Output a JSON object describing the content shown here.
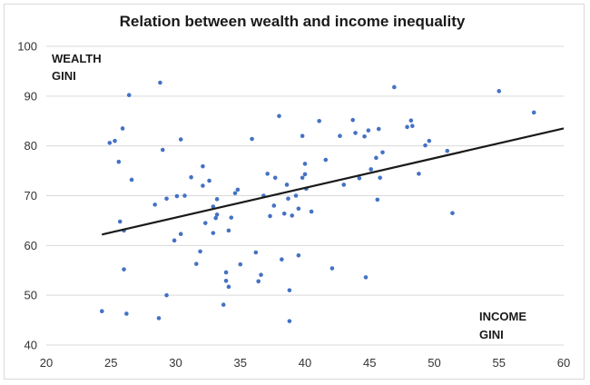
{
  "chart_data": {
    "type": "scatter",
    "title": "Relation between wealth and income inequality",
    "xlabel": [
      "INCOME",
      "GINI"
    ],
    "ylabel": [
      "WEALTH",
      "GINI"
    ],
    "xlim": [
      20,
      60
    ],
    "ylim": [
      40,
      100
    ],
    "xticks": [
      20,
      25,
      30,
      35,
      40,
      45,
      50,
      55,
      60
    ],
    "yticks": [
      40,
      50,
      60,
      70,
      80,
      90,
      100
    ],
    "grid": "horizontal",
    "colors": {
      "points": "#4472c4",
      "trendline": "#1a1a1a",
      "grid": "#d9d9d9"
    },
    "trendline": {
      "x": [
        24.3,
        60
      ],
      "y": [
        62.2,
        83.5
      ]
    },
    "points": [
      [
        24.3,
        46.8
      ],
      [
        24.9,
        80.6
      ],
      [
        25.3,
        81.0
      ],
      [
        25.6,
        76.8
      ],
      [
        25.7,
        64.8
      ],
      [
        25.9,
        83.5
      ],
      [
        26.0,
        63.0
      ],
      [
        26.0,
        55.2
      ],
      [
        26.2,
        46.3
      ],
      [
        26.4,
        90.2
      ],
      [
        26.6,
        73.2
      ],
      [
        28.4,
        68.2
      ],
      [
        28.7,
        45.4
      ],
      [
        28.8,
        92.7
      ],
      [
        29.0,
        79.2
      ],
      [
        29.3,
        69.4
      ],
      [
        29.3,
        50.0
      ],
      [
        29.9,
        61.0
      ],
      [
        30.1,
        69.9
      ],
      [
        30.4,
        81.3
      ],
      [
        30.4,
        62.3
      ],
      [
        30.7,
        70.0
      ],
      [
        31.2,
        73.7
      ],
      [
        31.6,
        56.3
      ],
      [
        31.9,
        58.8
      ],
      [
        32.1,
        75.9
      ],
      [
        32.1,
        72.0
      ],
      [
        32.3,
        64.5
      ],
      [
        32.6,
        73.0
      ],
      [
        32.9,
        62.5
      ],
      [
        32.9,
        67.8
      ],
      [
        33.1,
        65.5
      ],
      [
        33.2,
        66.2
      ],
      [
        33.2,
        69.3
      ],
      [
        33.7,
        48.1
      ],
      [
        33.9,
        54.6
      ],
      [
        33.9,
        52.9
      ],
      [
        34.1,
        51.7
      ],
      [
        34.1,
        63.0
      ],
      [
        34.3,
        65.6
      ],
      [
        34.6,
        70.5
      ],
      [
        34.8,
        71.2
      ],
      [
        35.0,
        56.2
      ],
      [
        35.9,
        81.4
      ],
      [
        36.2,
        58.6
      ],
      [
        36.4,
        52.8
      ],
      [
        36.6,
        54.1
      ],
      [
        36.8,
        70.0
      ],
      [
        37.1,
        74.4
      ],
      [
        37.3,
        65.9
      ],
      [
        37.6,
        68.0
      ],
      [
        37.7,
        73.6
      ],
      [
        38.0,
        86.0
      ],
      [
        38.2,
        57.2
      ],
      [
        38.4,
        66.4
      ],
      [
        38.6,
        72.2
      ],
      [
        38.7,
        69.4
      ],
      [
        38.8,
        44.8
      ],
      [
        38.8,
        51.0
      ],
      [
        39.0,
        66.0
      ],
      [
        39.3,
        70.0
      ],
      [
        39.5,
        58.0
      ],
      [
        39.5,
        67.4
      ],
      [
        39.8,
        82.0
      ],
      [
        39.8,
        73.6
      ],
      [
        40.0,
        74.3
      ],
      [
        40.0,
        76.4
      ],
      [
        40.1,
        71.4
      ],
      [
        40.5,
        66.8
      ],
      [
        41.1,
        85.0
      ],
      [
        41.6,
        77.2
      ],
      [
        42.1,
        55.4
      ],
      [
        42.7,
        82.0
      ],
      [
        43.0,
        72.2
      ],
      [
        43.7,
        85.2
      ],
      [
        43.9,
        82.6
      ],
      [
        44.2,
        73.5
      ],
      [
        44.6,
        81.9
      ],
      [
        44.7,
        53.6
      ],
      [
        44.9,
        83.1
      ],
      [
        45.1,
        75.3
      ],
      [
        45.5,
        77.6
      ],
      [
        45.6,
        69.2
      ],
      [
        45.7,
        83.4
      ],
      [
        45.8,
        73.6
      ],
      [
        46.0,
        78.7
      ],
      [
        46.9,
        91.8
      ],
      [
        47.9,
        83.8
      ],
      [
        48.2,
        85.1
      ],
      [
        48.3,
        84.0
      ],
      [
        48.8,
        74.4
      ],
      [
        49.3,
        80.1
      ],
      [
        49.6,
        81.0
      ],
      [
        51.0,
        79.0
      ],
      [
        51.4,
        66.5
      ],
      [
        55.0,
        91.0
      ],
      [
        57.7,
        86.7
      ]
    ]
  }
}
